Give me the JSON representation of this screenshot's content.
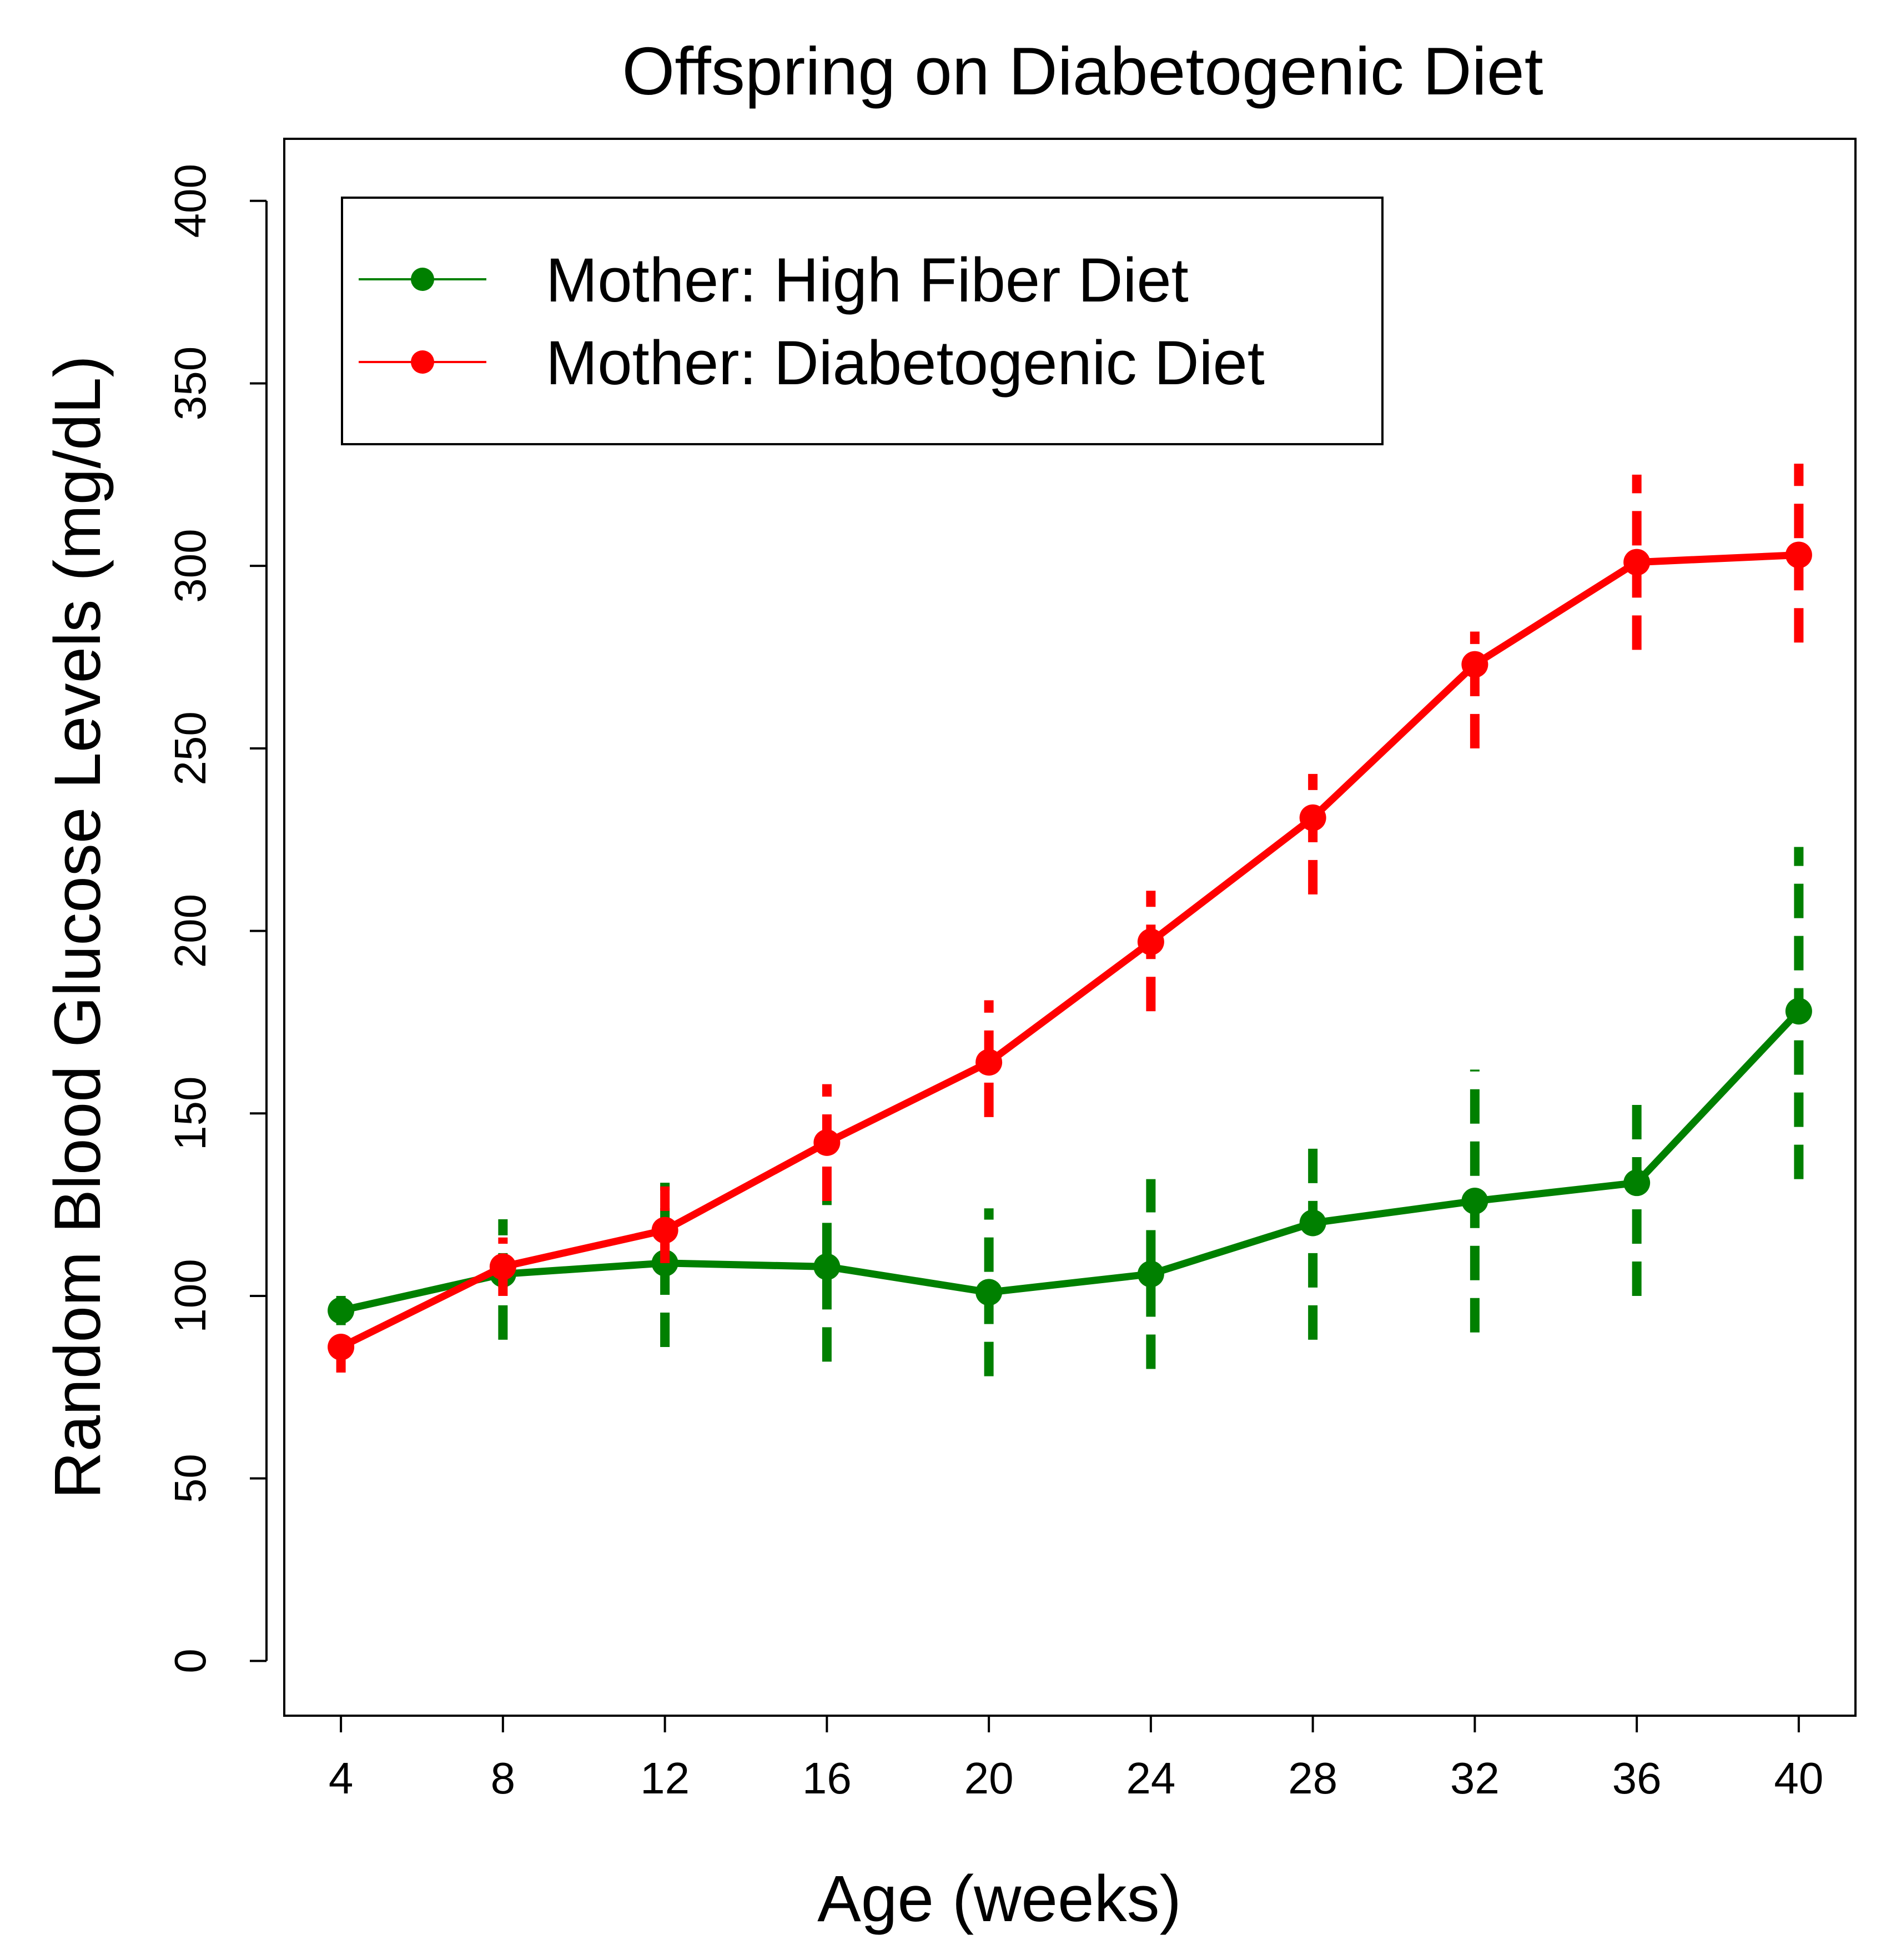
{
  "chart_data": {
    "type": "line",
    "title": "Offspring on Diabetogenic Diet",
    "xlabel": "Age (weeks)",
    "ylabel": "Random Blood Glucose Levels (mg/dL)",
    "x": [
      4,
      8,
      12,
      16,
      20,
      24,
      28,
      32,
      36,
      40
    ],
    "x_tick_labels": [
      "4",
      "8",
      "12",
      "16",
      "20",
      "24",
      "28",
      "32",
      "36",
      "40"
    ],
    "y_ticks": [
      0,
      50,
      100,
      150,
      200,
      250,
      300,
      350,
      400
    ],
    "y_tick_labels": [
      "0",
      "50",
      "100",
      "150",
      "200",
      "250",
      "300",
      "350",
      "400"
    ],
    "xlim": [
      2.6,
      41.4
    ],
    "ylim": [
      -15,
      417
    ],
    "grid": false,
    "legend_position": "top-left",
    "error_bar_style": "dashed vertical",
    "series": [
      {
        "name": "Mother: High Fiber Diet",
        "color": "#008000",
        "values": [
          96,
          106,
          109,
          108,
          101,
          106,
          120,
          126,
          131,
          178
        ],
        "error_low": [
          92,
          88,
          86,
          82,
          78,
          80,
          88,
          90,
          100,
          132
        ],
        "error_high": [
          100,
          121,
          131,
          126,
          124,
          132,
          143,
          162,
          155,
          223
        ]
      },
      {
        "name": "Mother: Diabetogenic Diet",
        "color": "#ff0000",
        "values": [
          86,
          108,
          118,
          142,
          164,
          197,
          231,
          273,
          301,
          303
        ],
        "error_low": [
          79,
          100,
          109,
          126,
          149,
          178,
          210,
          250,
          277,
          279
        ],
        "error_high": [
          92,
          116,
          130,
          158,
          181,
          211,
          243,
          282,
          325,
          328
        ]
      }
    ]
  }
}
